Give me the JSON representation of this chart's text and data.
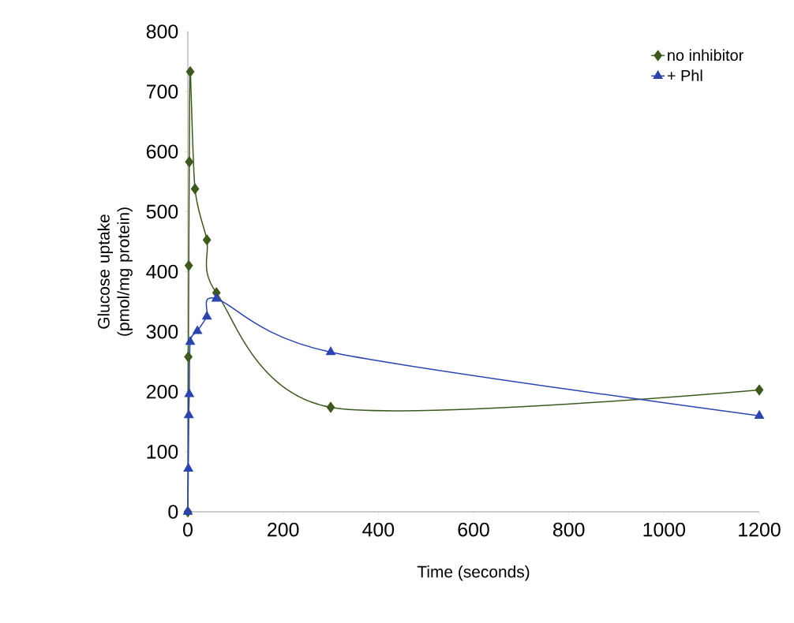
{
  "chart_data": {
    "type": "line",
    "xlabel": "Time (seconds)",
    "ylabel": "Glucose uptake (pmol/mg protein)",
    "xlim": [
      0,
      1200
    ],
    "ylim": [
      0,
      800
    ],
    "xticks": [
      0,
      200,
      400,
      600,
      800,
      1000,
      1200
    ],
    "yticks": [
      0,
      100,
      200,
      300,
      400,
      500,
      600,
      700,
      800
    ],
    "grid": false,
    "legend": "top right",
    "series": [
      {
        "name": "no inhibitor",
        "color": "#3d5a1e",
        "marker": "diamond",
        "x": [
          0,
          1,
          2,
          3,
          5,
          15,
          40,
          60,
          300,
          1200
        ],
        "values": [
          0,
          258,
          410,
          583,
          733,
          538,
          453,
          365,
          174,
          203
        ]
      },
      {
        "name": "+ Phl",
        "color": "#2b44b0",
        "marker": "triangle",
        "x": [
          0,
          1,
          2,
          3,
          5,
          20,
          40,
          60,
          300,
          1200
        ],
        "values": [
          0,
          72,
          161,
          196,
          283,
          301,
          325,
          355,
          266,
          160
        ]
      }
    ]
  }
}
